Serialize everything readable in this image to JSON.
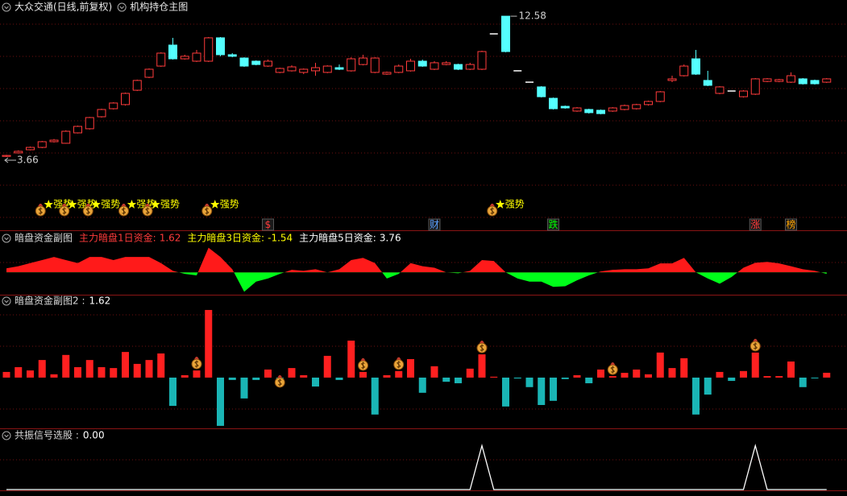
{
  "chart_data": [
    {
      "type": "candlestick",
      "title": "大众交通(日线,前复权)",
      "indicator": "机构持仓主图",
      "open": [
        3.7,
        3.92,
        4.12,
        4.27,
        4.63,
        4.53,
        5.19,
        5.45,
        6.21,
        6.72,
        6.98,
        7.89,
        8.71,
        9.42,
        10.75,
        9.88,
        9.73,
        9.73,
        11.21,
        10.14,
        9.93,
        9.73,
        9.42,
        9.02,
        9.12,
        9.02,
        9.12,
        9.02,
        9.32,
        9.12,
        9.52,
        9.02,
        8.91,
        9.02,
        9.12,
        9.73,
        9.22,
        9.52,
        9.52,
        9.22,
        9.22,
        11.46,
        12.58,
        9.12,
        8.4,
        8.1,
        7.38,
        6.87,
        6.57,
        6.67,
        6.62,
        6.57,
        6.67,
        6.72,
        6.98,
        7.18,
        8.51,
        8.81,
        9.88,
        8.51,
        7.69,
        7.84,
        7.48,
        7.64,
        8.45,
        8.45,
        8.4,
        8.61,
        8.51,
        8.4
      ],
      "high": [
        3.8,
        4.08,
        4.32,
        4.68,
        4.8,
        5.35,
        5.65,
        6.2,
        6.72,
        7.13,
        7.74,
        8.56,
        9.27,
        10.29,
        11.21,
        10.14,
        10.44,
        11.26,
        11.26,
        10.24,
        9.98,
        9.78,
        9.83,
        9.32,
        9.47,
        9.27,
        9.63,
        9.47,
        9.52,
        9.98,
        10.14,
        9.98,
        9.07,
        9.52,
        9.88,
        9.83,
        9.73,
        9.73,
        9.57,
        9.63,
        10.39,
        11.46,
        12.58,
        9.12,
        8.4,
        8.15,
        7.43,
        6.92,
        6.82,
        6.72,
        6.67,
        6.82,
        6.98,
        7.03,
        7.23,
        7.84,
        8.81,
        9.52,
        10.44,
        9.12,
        8.15,
        7.84,
        7.89,
        8.66,
        8.66,
        8.61,
        9.02,
        8.66,
        8.56,
        8.66
      ],
      "low": [
        3.66,
        3.88,
        4.08,
        4.22,
        4.58,
        4.5,
        5.15,
        5.4,
        6.16,
        6.67,
        6.92,
        7.84,
        8.66,
        9.37,
        9.83,
        9.83,
        9.68,
        9.68,
        10.04,
        9.98,
        9.37,
        9.47,
        9.37,
        8.97,
        9.07,
        8.91,
        8.81,
        8.97,
        9.17,
        9.07,
        9.47,
        8.97,
        8.86,
        8.97,
        9.07,
        9.37,
        9.17,
        9.47,
        9.17,
        9.17,
        9.17,
        11.46,
        10.29,
        9.12,
        8.4,
        7.43,
        6.67,
        6.72,
        6.52,
        6.41,
        6.36,
        6.52,
        6.62,
        6.67,
        6.92,
        7.13,
        8.4,
        8.76,
        8.86,
        8.15,
        7.64,
        7.84,
        7.43,
        7.59,
        8.4,
        8.4,
        8.35,
        8.25,
        8.25,
        8.35
      ],
      "close": [
        3.76,
        4.02,
        4.27,
        4.63,
        4.73,
        5.29,
        5.6,
        6.16,
        6.67,
        7.08,
        7.69,
        8.51,
        9.22,
        10.24,
        9.88,
        10.04,
        10.24,
        11.21,
        10.14,
        10.04,
        9.42,
        9.52,
        9.73,
        9.27,
        9.37,
        9.22,
        9.32,
        9.42,
        9.22,
        9.88,
        9.93,
        9.93,
        9.02,
        9.42,
        9.73,
        9.42,
        9.63,
        9.63,
        9.22,
        9.52,
        10.34,
        11.46,
        10.34,
        9.12,
        8.4,
        7.48,
        6.72,
        6.77,
        6.77,
        6.47,
        6.41,
        6.77,
        6.92,
        6.98,
        7.18,
        7.79,
        8.61,
        9.42,
        8.91,
        8.2,
        8.1,
        7.84,
        7.84,
        8.61,
        8.61,
        8.56,
        8.81,
        8.3,
        8.3,
        8.61
      ],
      "ylim": [
        3.15,
        13.35
      ],
      "up_color": "#ff3b3b",
      "down_color": "#54ffff",
      "flat_color": "#ffffff",
      "max_price": 12.58,
      "min_price": 3.66,
      "signal_label": "强势",
      "signal_color": "#ffff00",
      "signal_days": [
        3,
        5,
        7,
        10,
        12,
        17,
        41
      ],
      "markers": [
        {
          "index": 22,
          "label": "$",
          "color": "#ff3b3b"
        },
        {
          "index": 36,
          "label": "财",
          "color": "#5aa0ff"
        },
        {
          "index": 46,
          "label": "跌",
          "color": "#00ff00"
        },
        {
          "index": 63,
          "label": "涨",
          "color": "#ff3b3b"
        },
        {
          "index": 66,
          "label": "榜",
          "color": "#ffa500"
        }
      ]
    },
    {
      "type": "area",
      "title": "暗盘资金副图",
      "legend": [
        {
          "name": "主力暗盘1日资金:",
          "value": 1.62,
          "color": "#ff3b3b"
        },
        {
          "name": "主力暗盘3日资金:",
          "value": -1.54,
          "color": "#ffff00"
        },
        {
          "name": "主力暗盘5日资金:",
          "value": 3.76,
          "color": "#ffffff"
        }
      ],
      "values": [
        1.3,
        2,
        3,
        4,
        5,
        4,
        3,
        5,
        5,
        4,
        5,
        5,
        5,
        3,
        0.5,
        -0.5,
        -1,
        8,
        5,
        1,
        -6.3,
        -3,
        -2,
        -0.5,
        0.8,
        0.5,
        1,
        0,
        1,
        4,
        4.7,
        3,
        -2,
        -0.5,
        3,
        2,
        1.5,
        0,
        -0.3,
        0.5,
        4,
        3.7,
        0,
        -2,
        -3,
        -3,
        -4.7,
        -4.5,
        -2.6,
        -1,
        0.3,
        0.8,
        1,
        1,
        1.3,
        2.9,
        2.9,
        4.7,
        0,
        -2,
        -3.7,
        -1.5,
        1.5,
        3.1,
        3.4,
        2.9,
        2,
        1,
        0.5,
        -0.5
      ],
      "ylim": [
        -7,
        10
      ],
      "positive_color": "#ff1a1a",
      "negative_color": "#00ff1a"
    },
    {
      "type": "bar",
      "title": "暗盘资金副图2 :",
      "current": 1.62,
      "values": [
        1.9,
        3.5,
        2.4,
        5.9,
        1.1,
        7.6,
        3.5,
        5.9,
        3.5,
        3.2,
        8.6,
        4.6,
        5.9,
        8.1,
        -9.5,
        0.8,
        2.4,
        22.7,
        -16.2,
        -0.8,
        -7,
        -0.8,
        2.7,
        -0.8,
        3.2,
        0.8,
        -3,
        7.3,
        -0.8,
        12.4,
        1.9,
        -12.4,
        0.8,
        2.2,
        6.2,
        -5.1,
        3.8,
        -1.4,
        -1.9,
        3,
        7.8,
        0.3,
        -9.7,
        -0.3,
        -3.2,
        -9.2,
        -7.8,
        -0.5,
        0.8,
        -1.9,
        2.7,
        0.5,
        1.6,
        2.7,
        1.1,
        8.4,
        3.2,
        6.5,
        -12.4,
        -5.7,
        1.9,
        -1.1,
        2.2,
        8.4,
        0.5,
        0.5,
        5.4,
        -3.2,
        -0.1,
        1.62
      ],
      "ylim": [
        -16.5,
        26.2
      ],
      "positive_color": "#ff2020",
      "negative_color": "#1ab5b5",
      "bag_days": [
        16,
        23,
        30,
        33,
        40,
        51,
        63
      ]
    },
    {
      "type": "line",
      "title": "共振信号选股 :",
      "current": "0.00",
      "values": [
        0,
        0,
        0,
        0,
        0,
        0,
        0,
        0,
        0,
        0,
        0,
        0,
        0,
        0,
        0,
        0,
        0,
        0,
        0,
        0,
        0,
        0,
        0,
        0,
        0,
        0,
        0,
        0,
        0,
        0,
        0,
        0,
        0,
        0,
        0,
        0,
        0,
        0,
        0,
        0,
        1,
        0,
        0,
        0,
        0,
        0,
        0,
        0,
        0,
        0,
        0,
        0,
        0,
        0,
        0,
        0,
        0,
        0,
        0,
        0,
        0,
        0,
        0,
        1,
        0,
        0,
        0,
        0,
        0,
        0
      ],
      "ylim": [
        0,
        1.1
      ],
      "color": "#ffffff"
    }
  ]
}
